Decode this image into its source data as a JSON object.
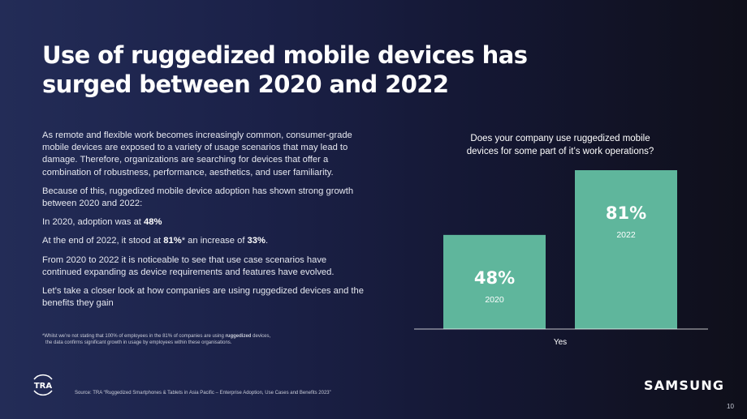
{
  "slide": {
    "title_line1": "Use of ruggedized mobile devices has",
    "title_line2": "surged between 2020 and 2022",
    "paragraph1": "As remote and flexible work becomes increasingly common, consumer-grade mobile devices are exposed to a variety of usage scenarios that may lead to damage. Therefore, organizations are searching for devices that offer a combination of robustness, performance, aesthetics, and user familiarity.",
    "paragraph2": "Because of this, ruggedized mobile device adoption has shown strong growth between 2020 and 2022:",
    "p3_prefix": "In 2020, adoption was at ",
    "p3_value": "48%",
    "p4_prefix": "At the end of 2022, it stood at ",
    "p4_value": "81%",
    "p4_middle": "* an increase of ",
    "p4_increase": "33%",
    "p4_suffix": ".",
    "paragraph5": "From 2020 to 2022 it is noticeable to see that use case scenarios have continued expanding as device requirements and features have evolved.",
    "paragraph6": "Let’s take a closer look at how companies are using ruggedized devices and the benefits they gain",
    "footnote_line1_prefix": "*Whilst we’re not stating that 100% of employees in the 81% of companies are using ",
    "footnote_line1_bold": "ruggedized",
    "footnote_line1_suffix": " devices,",
    "footnote_line2": "the data confirms significant growth in usage by employees within these organisations.",
    "source": "Source: TRA “Ruggedized Smartphones & Tablets in Asia Pacific – Enterprise Adoption, Use Cases and Benefits 2023”",
    "tra_logo_text": "TRA",
    "samsung_logo_text": "SAMSUNG",
    "page_number": "10"
  },
  "colors": {
    "bar": "#5fb69c",
    "axis": "#ffffff",
    "background_left": "#232c57",
    "background_right": "#0f0f1a"
  },
  "chart_data": {
    "type": "bar",
    "title_line1": "Does your company use ruggedized mobile",
    "title_line2": "devices for some part of it’s work operations?",
    "xlabel": "Yes",
    "ylabel": "",
    "categories": [
      "2020",
      "2022"
    ],
    "values": [
      48,
      81
    ],
    "data_labels": [
      "48%",
      "81%"
    ],
    "ylim": [
      0,
      100
    ],
    "grid": false
  }
}
